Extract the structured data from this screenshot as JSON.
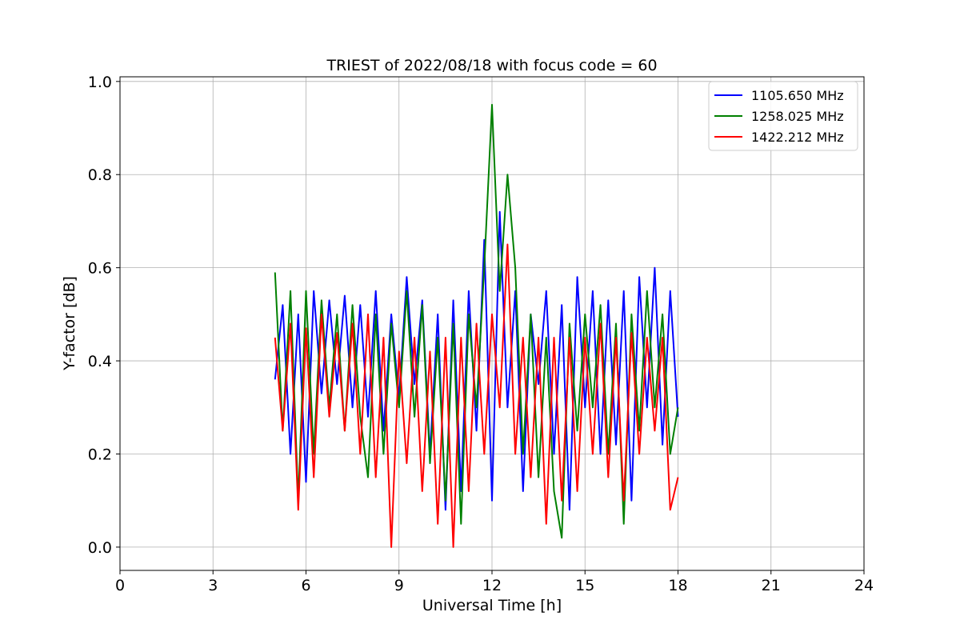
{
  "chart_data": {
    "type": "line",
    "title": "TRIEST of 2022/08/18 with focus code = 60",
    "xlabel": "Universal Time [h]",
    "ylabel": "Y-factor [dB]",
    "xlim": [
      0,
      24
    ],
    "ylim": [
      -0.05,
      1.01
    ],
    "xticks": [
      0,
      3,
      6,
      9,
      12,
      15,
      18,
      21,
      24
    ],
    "yticks": [
      0.0,
      0.2,
      0.4,
      0.6,
      0.8,
      1.0
    ],
    "xtick_labels": [
      "0",
      "3",
      "6",
      "9",
      "12",
      "15",
      "18",
      "21",
      "24"
    ],
    "ytick_labels": [
      "0.0",
      "0.2",
      "0.4",
      "0.6",
      "0.8",
      "1.0"
    ],
    "grid": true,
    "legend_position": "top-right",
    "x": [
      5.0,
      5.25,
      5.5,
      5.75,
      6.0,
      6.25,
      6.5,
      6.75,
      7.0,
      7.25,
      7.5,
      7.75,
      8.0,
      8.25,
      8.5,
      8.75,
      9.0,
      9.25,
      9.5,
      9.75,
      10.0,
      10.25,
      10.5,
      10.75,
      11.0,
      11.25,
      11.5,
      11.75,
      12.0,
      12.25,
      12.5,
      12.75,
      13.0,
      13.25,
      13.5,
      13.75,
      14.0,
      14.25,
      14.5,
      14.75,
      15.0,
      15.25,
      15.5,
      15.75,
      16.0,
      16.25,
      16.5,
      16.75,
      17.0,
      17.25,
      17.5,
      17.75,
      18.0
    ],
    "series": [
      {
        "name": "1105.650 MHz",
        "color": "#0000ff",
        "values": [
          0.36,
          0.52,
          0.2,
          0.5,
          0.14,
          0.55,
          0.33,
          0.53,
          0.35,
          0.54,
          0.3,
          0.52,
          0.28,
          0.55,
          0.25,
          0.5,
          0.32,
          0.58,
          0.35,
          0.53,
          0.2,
          0.5,
          0.08,
          0.53,
          0.12,
          0.55,
          0.25,
          0.66,
          0.1,
          0.72,
          0.3,
          0.55,
          0.12,
          0.5,
          0.35,
          0.55,
          0.2,
          0.52,
          0.08,
          0.58,
          0.3,
          0.55,
          0.2,
          0.53,
          0.22,
          0.55,
          0.1,
          0.58,
          0.3,
          0.6,
          0.22,
          0.55,
          0.28
        ]
      },
      {
        "name": "1258.025 MHz",
        "color": "#008000",
        "values": [
          0.59,
          0.25,
          0.55,
          0.1,
          0.55,
          0.2,
          0.53,
          0.3,
          0.5,
          0.25,
          0.52,
          0.28,
          0.15,
          0.5,
          0.2,
          0.48,
          0.3,
          0.55,
          0.28,
          0.52,
          0.18,
          0.45,
          0.1,
          0.48,
          0.05,
          0.5,
          0.3,
          0.6,
          0.95,
          0.55,
          0.8,
          0.6,
          0.2,
          0.5,
          0.15,
          0.45,
          0.12,
          0.02,
          0.48,
          0.25,
          0.5,
          0.3,
          0.52,
          0.2,
          0.48,
          0.05,
          0.5,
          0.25,
          0.55,
          0.3,
          0.5,
          0.2,
          0.3
        ]
      },
      {
        "name": "1422.212 MHz",
        "color": "#ff0000",
        "values": [
          0.45,
          0.25,
          0.48,
          0.08,
          0.47,
          0.15,
          0.5,
          0.28,
          0.46,
          0.25,
          0.48,
          0.2,
          0.5,
          0.15,
          0.45,
          0.0,
          0.42,
          0.18,
          0.45,
          0.12,
          0.42,
          0.05,
          0.45,
          0.0,
          0.45,
          0.12,
          0.48,
          0.2,
          0.5,
          0.3,
          0.65,
          0.2,
          0.45,
          0.15,
          0.45,
          0.05,
          0.45,
          0.1,
          0.45,
          0.12,
          0.45,
          0.2,
          0.48,
          0.15,
          0.45,
          0.1,
          0.46,
          0.2,
          0.45,
          0.25,
          0.45,
          0.08,
          0.15
        ]
      }
    ]
  }
}
